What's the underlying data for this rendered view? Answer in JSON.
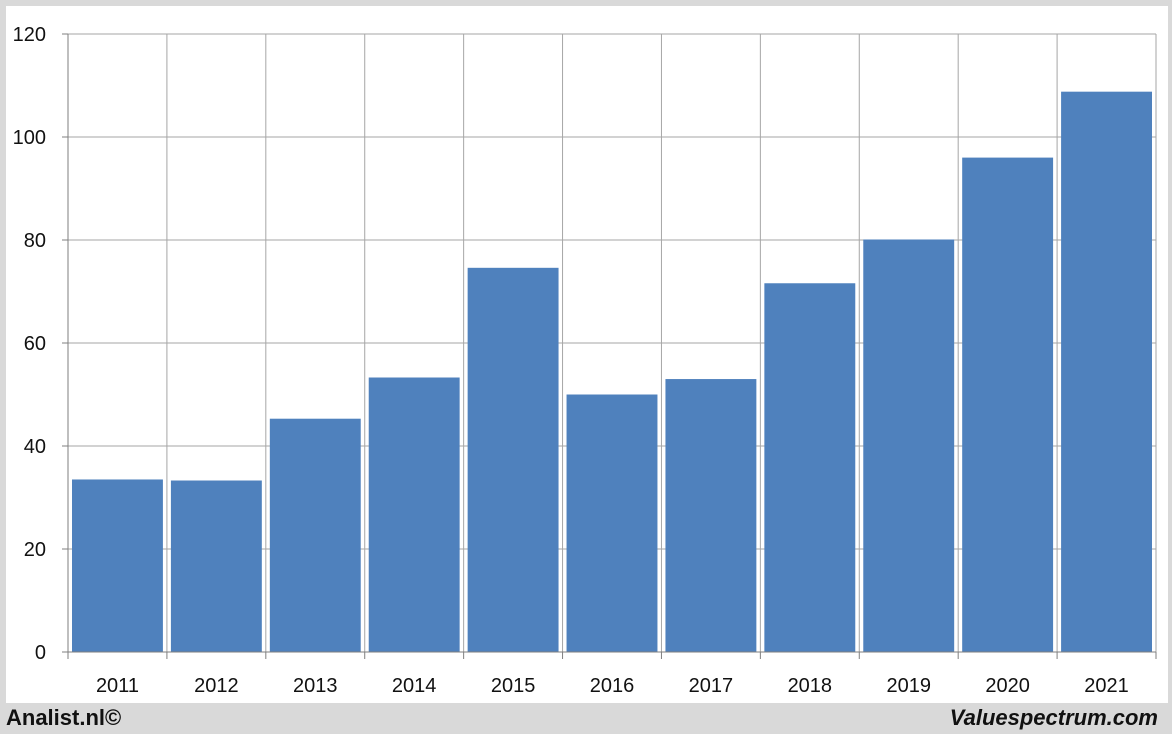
{
  "chart_data": {
    "type": "bar",
    "categories": [
      "2011",
      "2012",
      "2013",
      "2014",
      "2015",
      "2016",
      "2017",
      "2018",
      "2019",
      "2020",
      "2021"
    ],
    "values": [
      33.5,
      33.3,
      45.3,
      53.3,
      74.6,
      50.0,
      53.0,
      71.6,
      80.1,
      96.0,
      108.8
    ],
    "title": "",
    "xlabel": "",
    "ylabel": "",
    "ylim": [
      0,
      120
    ],
    "yticks": [
      "0",
      "20",
      "40",
      "60",
      "80",
      "100",
      "120"
    ],
    "grid": true,
    "bar_color": "#4f81bd",
    "grid_color": "#a6a6a6"
  },
  "footer": {
    "left": "Analist.nl©",
    "right": "Valuespectrum.com"
  }
}
